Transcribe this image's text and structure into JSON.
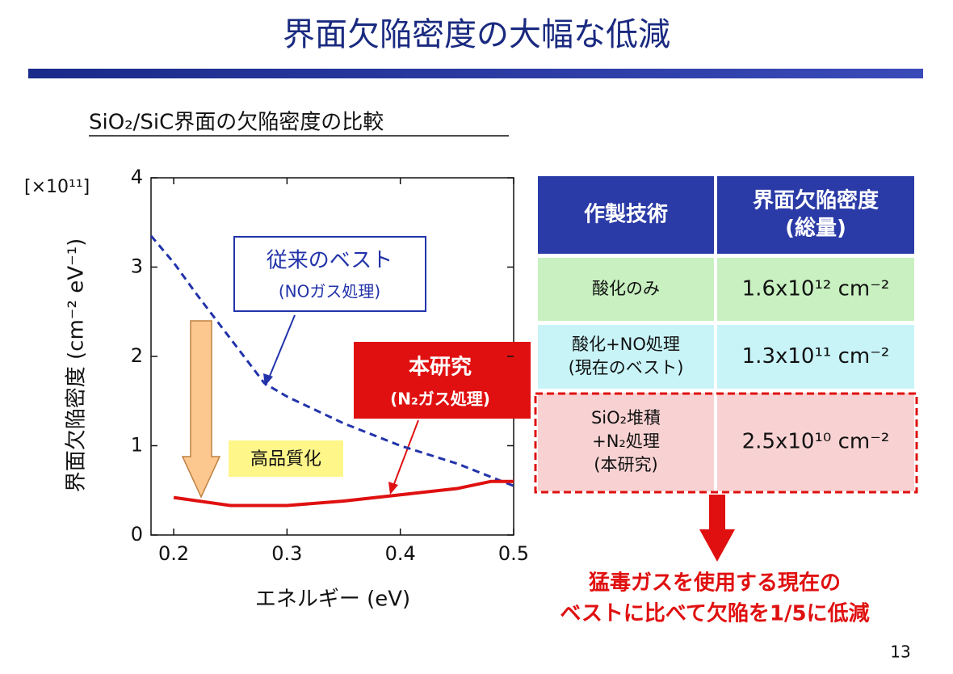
{
  "title": "界面欠陥密度の大幅な低減",
  "subtitle": "SiO₂/SiC界面の欠陥密度の比較",
  "chart_data": {
    "type": "line",
    "y_multiplier": "[×10¹¹]",
    "xlabel": "エネルギー (eV)",
    "ylabel": "界面欠陥密度 (cm⁻² eV⁻¹)",
    "xlim": [
      0.18,
      0.5
    ],
    "xticks": [
      0.2,
      0.3,
      0.4,
      0.5
    ],
    "ylim": [
      0,
      4
    ],
    "yticks": [
      0,
      1,
      2,
      3,
      4
    ],
    "series": [
      {
        "name": "従来のベスト",
        "annotation": "(NOガス処理)",
        "color": "#2233aa",
        "dashed": true,
        "x": [
          0.18,
          0.2,
          0.22,
          0.25,
          0.28,
          0.3,
          0.35,
          0.4,
          0.45,
          0.5
        ],
        "values": [
          3.35,
          3.05,
          2.7,
          2.2,
          1.7,
          1.55,
          1.25,
          1.0,
          0.8,
          0.55
        ]
      },
      {
        "name": "本研究",
        "annotation": "(N₂ガス処理)",
        "color": "#e01010",
        "dashed": false,
        "x": [
          0.2,
          0.25,
          0.3,
          0.35,
          0.4,
          0.45,
          0.48,
          0.5
        ],
        "values": [
          0.42,
          0.33,
          0.33,
          0.38,
          0.45,
          0.52,
          0.6,
          0.6
        ]
      }
    ],
    "annotations": [
      "高品質化"
    ]
  },
  "table": {
    "header": [
      [
        "作製技術"
      ],
      [
        "界面欠陥密度",
        "(総量)"
      ]
    ],
    "rows": [
      [
        [
          "酸化のみ"
        ],
        [
          "1.6x10¹² cm⁻²"
        ]
      ],
      [
        [
          "酸化+NO処理",
          "(現在のベスト)"
        ],
        [
          "1.3x10¹¹ cm⁻²"
        ]
      ],
      [
        [
          "SiO₂堆積",
          "+N₂処理",
          "(本研究)"
        ],
        [
          "2.5x10¹⁰ cm⁻²"
        ]
      ]
    ]
  },
  "conclusion": [
    "猛毒ガスを使用する現在の",
    "ベストに比べて欠陥を1/5に低減"
  ],
  "page_number": "13"
}
